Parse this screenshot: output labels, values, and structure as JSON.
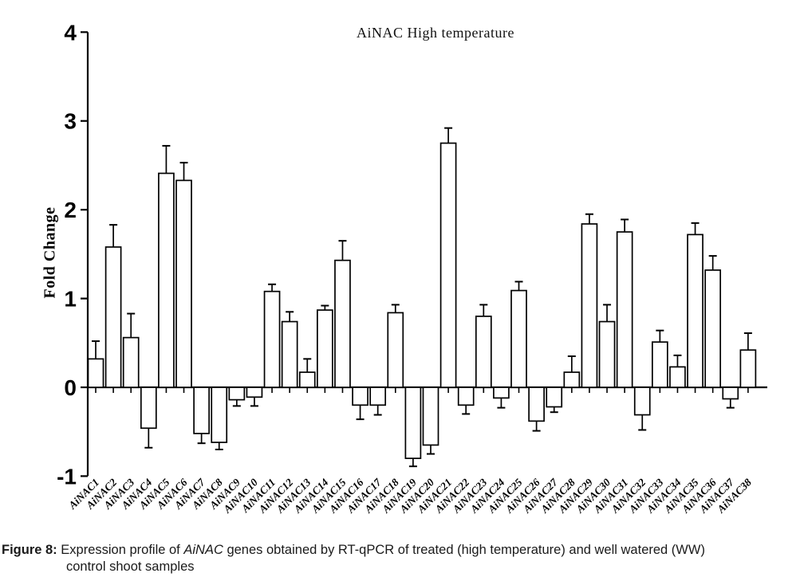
{
  "caption": {
    "line1_segments": [
      {
        "text": "Figure 8:",
        "bold": true,
        "italic": false
      },
      {
        "text": " Expression profile of ",
        "bold": false,
        "italic": false
      },
      {
        "text": "AiNAC",
        "bold": false,
        "italic": true
      },
      {
        "text": " genes obtained by RT-qPCR of treated (high temperature) and well watered (WW)",
        "bold": false,
        "italic": false
      }
    ],
    "line2": "control shoot samples"
  },
  "chart_data": {
    "type": "bar",
    "title": "AiNAC High temperature",
    "xlabel": "",
    "ylabel": "Fold Change",
    "ylim": [
      -1,
      4
    ],
    "yticks": [
      4,
      3,
      2,
      1,
      0,
      -1
    ],
    "grid": false,
    "legend": "none",
    "bar_fill": "#ffffff",
    "bar_stroke": "#000000",
    "error_bar_style": "outward whisker with cap",
    "categories": [
      "AiNAC1",
      "AiNAC2",
      "AiNAC3",
      "AiNAC4",
      "AiNAC5",
      "AiNAC6",
      "AiNAC7",
      "AiNAC8",
      "AiNAC9",
      "AiNAC10",
      "AiNAC11",
      "AiNAC12",
      "AiNAC13",
      "AiNAC14",
      "AiNAC15",
      "AiNAC16",
      "AiNAC17",
      "AiNAC18",
      "AiNAC19",
      "AiNAC20",
      "AiNAC21",
      "AiNAC22",
      "AiNAC23",
      "AiNAC24",
      "AiNAC25",
      "AiNAC26",
      "AiNAC27",
      "AiNAC28",
      "AiNAC29",
      "AiNAC30",
      "AiNAC31",
      "AiNAC32",
      "AiNAC33",
      "AiNAC34",
      "AiNAC35",
      "AiNAC36",
      "AiNAC37",
      "AiNAC38"
    ],
    "values": [
      0.32,
      1.58,
      0.56,
      -0.46,
      2.41,
      2.33,
      -0.52,
      -0.62,
      -0.14,
      -0.11,
      1.08,
      0.74,
      0.17,
      0.87,
      1.43,
      -0.2,
      -0.2,
      0.84,
      -0.8,
      -0.65,
      2.75,
      -0.2,
      0.8,
      -0.12,
      1.09,
      -0.38,
      -0.22,
      0.17,
      1.84,
      0.74,
      1.75,
      -0.31,
      0.51,
      0.23,
      1.72,
      1.32,
      -0.13,
      0.42
    ],
    "errors": [
      0.2,
      0.25,
      0.27,
      0.22,
      0.31,
      0.2,
      0.11,
      0.08,
      0.07,
      0.1,
      0.08,
      0.11,
      0.15,
      0.05,
      0.22,
      0.16,
      0.11,
      0.09,
      0.09,
      0.1,
      0.17,
      0.1,
      0.13,
      0.11,
      0.1,
      0.11,
      0.06,
      0.18,
      0.11,
      0.19,
      0.14,
      0.17,
      0.13,
      0.13,
      0.13,
      0.16,
      0.1,
      0.19
    ]
  }
}
